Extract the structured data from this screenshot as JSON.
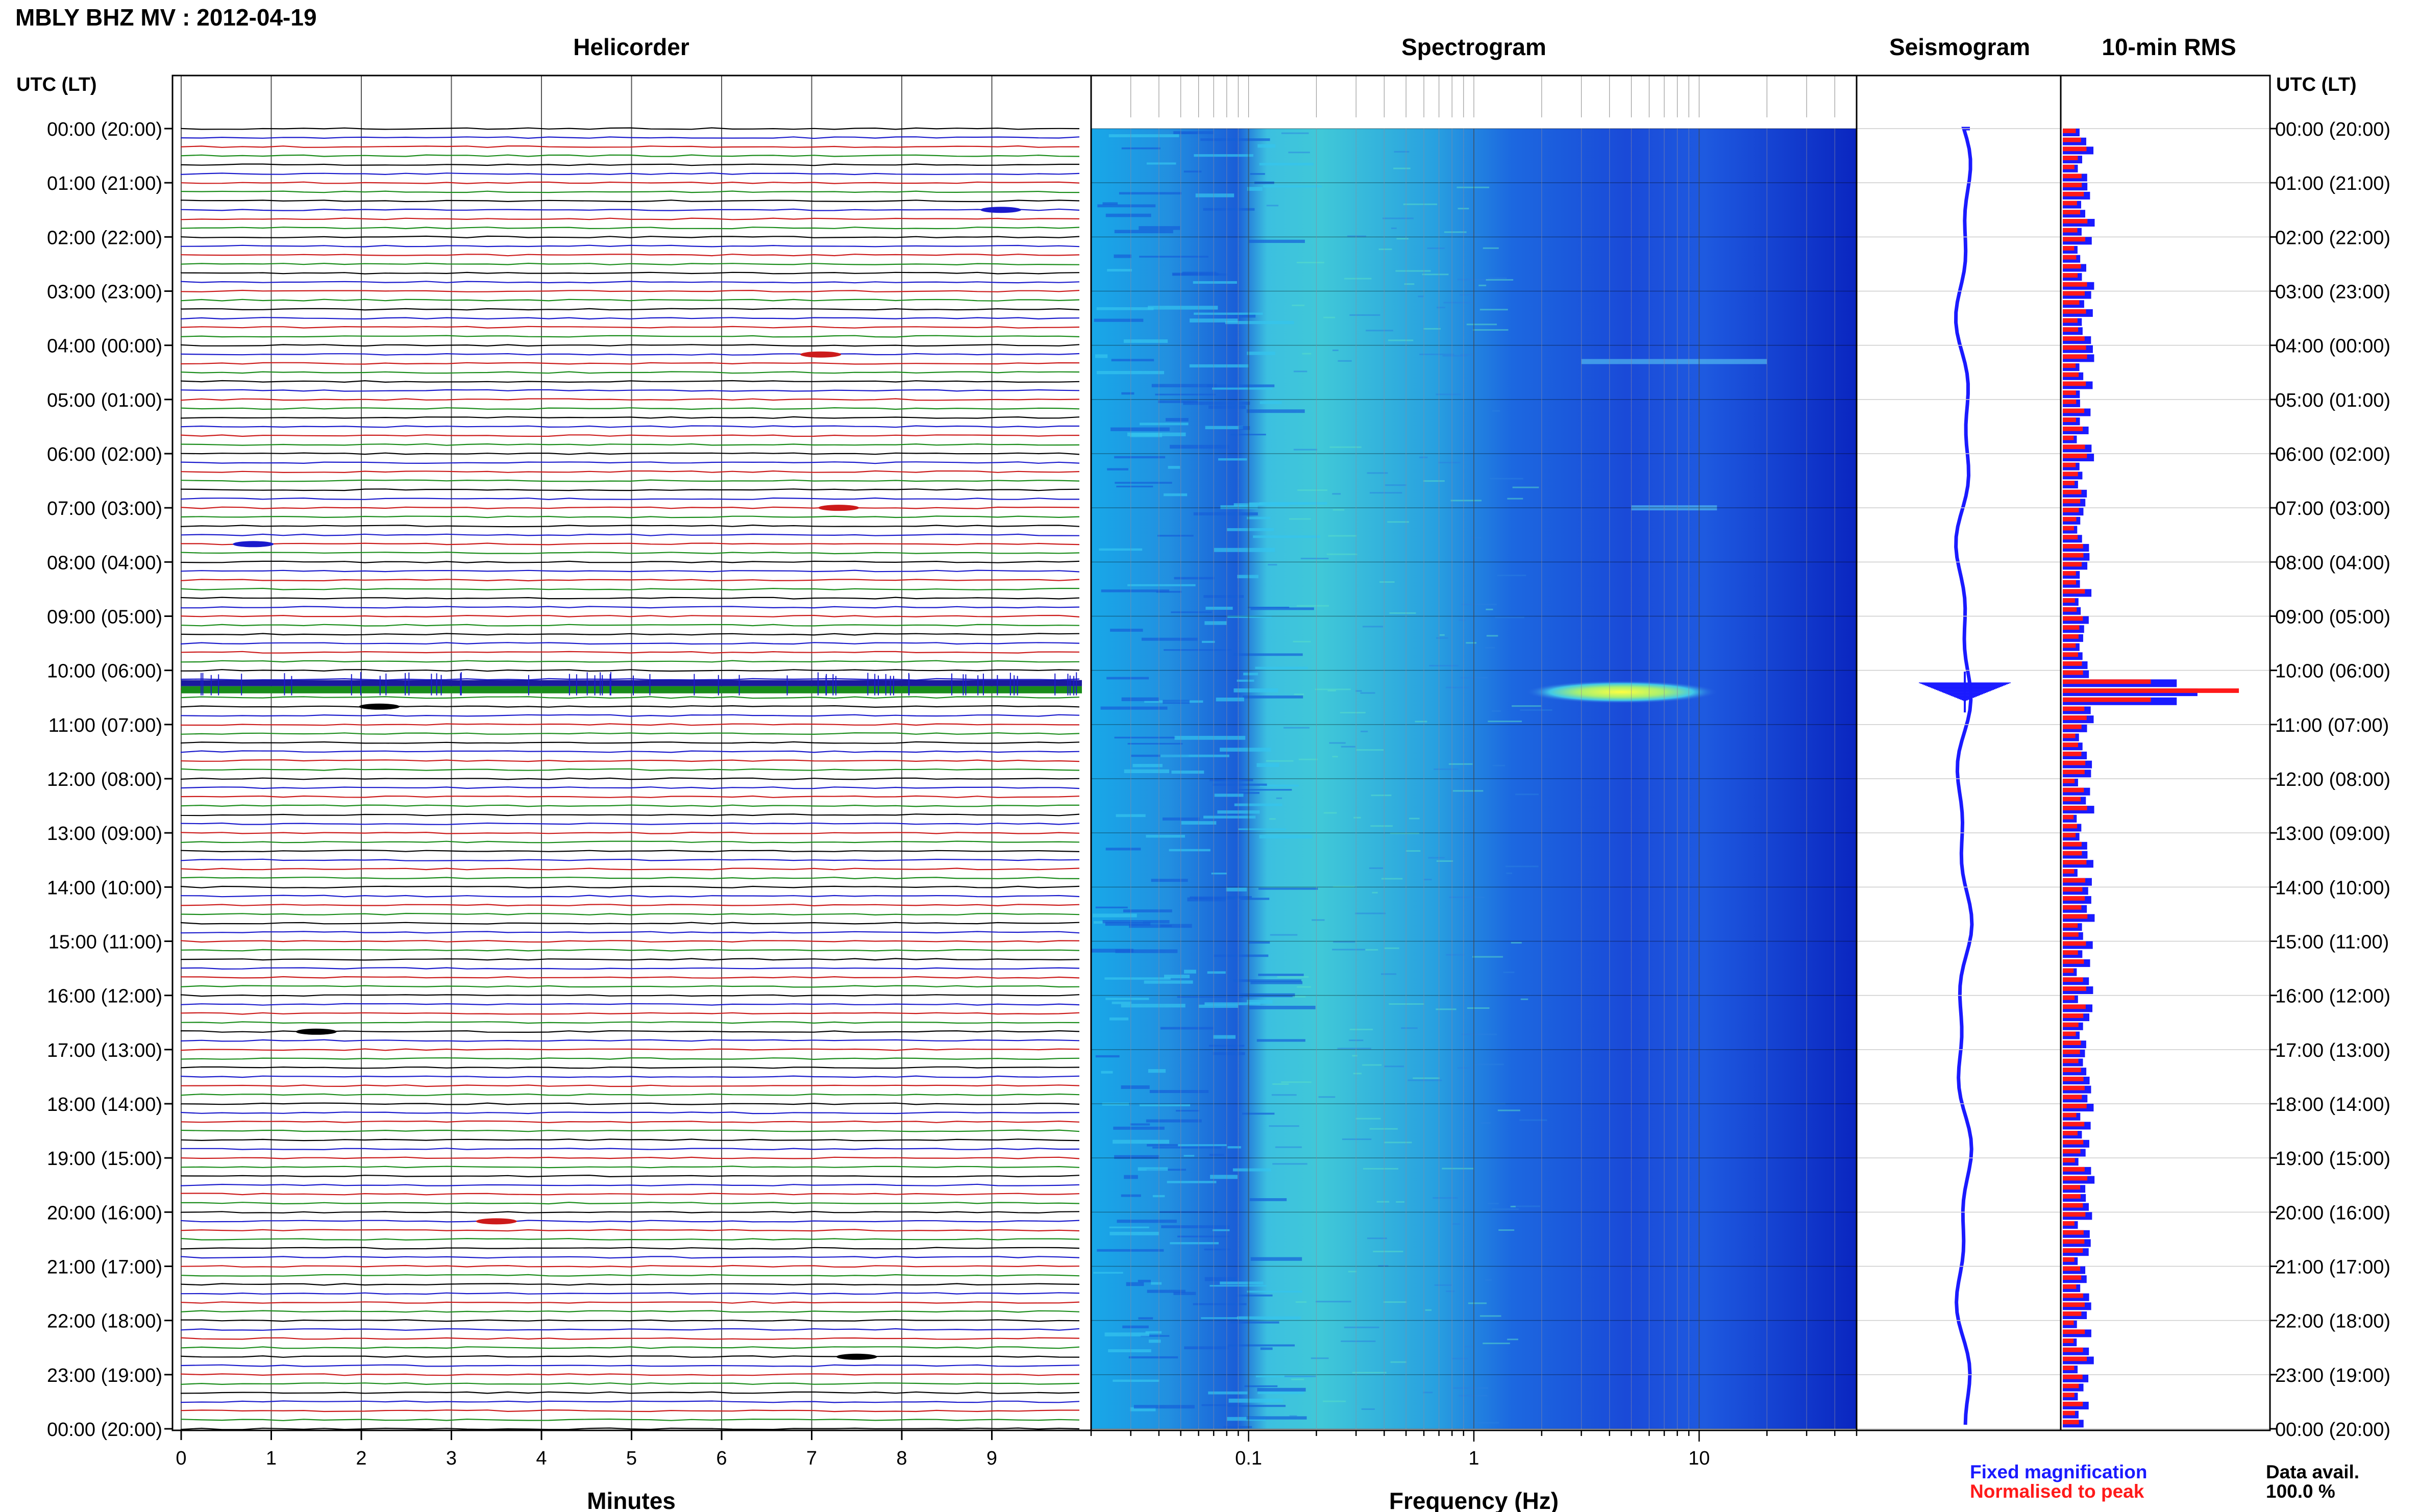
{
  "page_title": "MBLY BHZ MV : 2012-04-19",
  "panels": {
    "helicorder": "Helicorder",
    "spectrogram": "Spectrogram",
    "seismogram": "Seismogram",
    "rms": "10-min RMS"
  },
  "time_axis_label": "UTC (LT)",
  "time_labels": [
    "00:00 (20:00)",
    "01:00 (21:00)",
    "02:00 (22:00)",
    "03:00 (23:00)",
    "04:00 (00:00)",
    "05:00 (01:00)",
    "06:00 (02:00)",
    "07:00 (03:00)",
    "08:00 (04:00)",
    "09:00 (05:00)",
    "10:00 (06:00)",
    "11:00 (07:00)",
    "12:00 (08:00)",
    "13:00 (09:00)",
    "14:00 (10:00)",
    "15:00 (11:00)",
    "16:00 (12:00)",
    "17:00 (13:00)",
    "18:00 (14:00)",
    "19:00 (15:00)",
    "20:00 (16:00)",
    "21:00 (17:00)",
    "22:00 (18:00)",
    "23:00 (19:00)",
    "00:00 (20:00)"
  ],
  "legend": {
    "fixed": "Fixed magnification",
    "normalised": "Normalised to peak",
    "fixed_color": "#1a1aff",
    "normalised_color": "#ff1a1a"
  },
  "data_avail": {
    "label": "Data avail.",
    "value": "100.0 %"
  },
  "chart_data": [
    {
      "type": "line",
      "panel": "Helicorder",
      "xlabel": "Minutes",
      "x_ticks": [
        "0",
        "1",
        "2",
        "3",
        "4",
        "5",
        "6",
        "7",
        "8",
        "9"
      ],
      "xlim": [
        0,
        10
      ],
      "trace_colors": [
        "#000000",
        "#1a1acc",
        "#cc1a1a",
        "#1a8c1a"
      ],
      "events": [
        {
          "hour": 1.5,
          "minute": 9.1,
          "color": "#1a1acc"
        },
        {
          "hour": 4.17,
          "minute": 7.1,
          "color": "#cc1a1a"
        },
        {
          "hour": 7.0,
          "minute": 7.3,
          "color": "#cc1a1a"
        },
        {
          "hour": 7.67,
          "minute": 0.8,
          "color": "#1a1acc"
        },
        {
          "hour": 10.33,
          "minute": 0,
          "minute_end": 10,
          "color": "#1a1acc",
          "major": true
        },
        {
          "hour": 10.67,
          "minute": 2.2,
          "color": "#000000"
        },
        {
          "hour": 16.67,
          "minute": 1.5,
          "color": "#000000"
        },
        {
          "hour": 20.17,
          "minute": 3.5,
          "color": "#cc1a1a"
        },
        {
          "hour": 22.67,
          "minute": 7.5,
          "color": "#000000"
        }
      ]
    },
    {
      "type": "heatmap",
      "panel": "Spectrogram",
      "xlabel": "Frequency (Hz)",
      "x_scale": "log",
      "xlim": [
        0.02,
        50
      ],
      "x_ticks": [
        "0.1",
        "1",
        "10"
      ],
      "features": [
        {
          "hour": 10.4,
          "f_min": 1.7,
          "f_max": 12,
          "note": "broadband event"
        },
        {
          "hour": 4.3,
          "f_min": 3,
          "f_max": 20
        },
        {
          "hour": 7.0,
          "f_min": 5,
          "f_max": 12
        }
      ]
    },
    {
      "type": "line",
      "panel": "Seismogram",
      "series": [
        {
          "color": "#1a1aff"
        }
      ],
      "spike_hour": 10.4
    },
    {
      "type": "bar",
      "panel": "10-min RMS",
      "ylim": [
        0,
        24
      ],
      "series": [
        {
          "name": "Fixed magnification",
          "color": "#1a1aff"
        },
        {
          "name": "Normalised to peak",
          "color": "#ff1a1a"
        }
      ],
      "peak_hour": 10.33,
      "peak_value": 1.0,
      "typical_value": 0.1
    }
  ]
}
